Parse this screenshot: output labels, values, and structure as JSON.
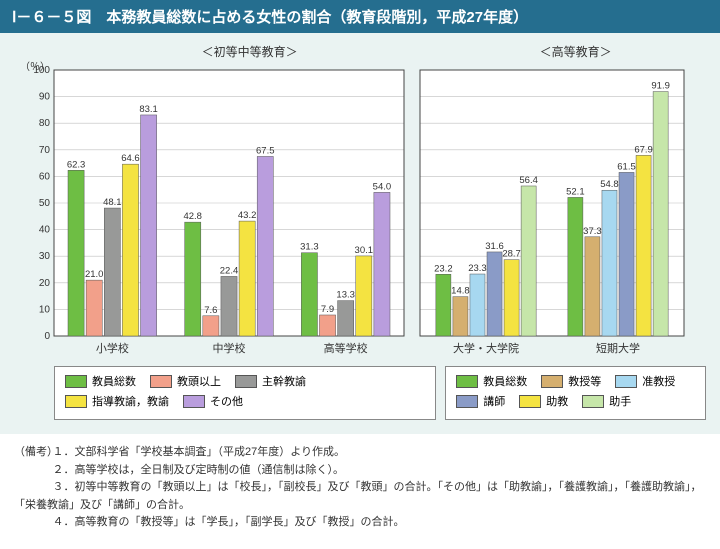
{
  "title": "Ⅰ－６－５図　本務教員総数に占める女性の割合（教育段階別，平成27年度）",
  "panel_left_title": "＜初等中等教育＞",
  "panel_right_title": "＜高等教育＞",
  "y_axis_label": "（％）",
  "y_axis": {
    "min": 0,
    "max": 100,
    "step": 10
  },
  "colors": {
    "green": "#6EBE44",
    "salmon": "#F2A08A",
    "gray": "#989998",
    "yellow": "#F4E341",
    "violet": "#B99DDD",
    "tan": "#D5AF6F",
    "lightblue": "#A7D8F0",
    "slate": "#8A9BC7",
    "palegreen": "#C6E6A9",
    "background": "#EAF3F2",
    "plot_bg": "#FFFFFF",
    "plot_border": "#444444",
    "grid": "#BFBFBF",
    "text": "#333333"
  },
  "left": {
    "series": [
      {
        "key": "s1",
        "label": "教員総数",
        "color": "green"
      },
      {
        "key": "s2",
        "label": "教頭以上",
        "color": "salmon"
      },
      {
        "key": "s3",
        "label": "主幹教諭",
        "color": "gray"
      },
      {
        "key": "s4",
        "label": "指導教諭，教諭",
        "color": "yellow"
      },
      {
        "key": "s5",
        "label": "その他",
        "color": "violet"
      }
    ],
    "categories": [
      {
        "label": "小学校",
        "values": [
          62.3,
          21.0,
          48.1,
          64.6,
          83.1
        ]
      },
      {
        "label": "中学校",
        "values": [
          42.8,
          7.6,
          22.4,
          43.2,
          67.5
        ]
      },
      {
        "label": "高等学校",
        "values": [
          31.3,
          7.9,
          13.3,
          30.1,
          54.0
        ]
      }
    ]
  },
  "right": {
    "series": [
      {
        "key": "r1",
        "label": "教員総数",
        "color": "green"
      },
      {
        "key": "r2",
        "label": "教授等",
        "color": "tan"
      },
      {
        "key": "r3",
        "label": "准教授",
        "color": "lightblue"
      },
      {
        "key": "r4",
        "label": "講師",
        "color": "slate"
      },
      {
        "key": "r5",
        "label": "助教",
        "color": "yellow"
      },
      {
        "key": "r6",
        "label": "助手",
        "color": "palegreen"
      }
    ],
    "categories": [
      {
        "label": "大学・大学院",
        "values": [
          23.2,
          14.8,
          23.3,
          31.6,
          28.7,
          56.4
        ]
      },
      {
        "label": "短期大学",
        "values": [
          52.1,
          37.3,
          54.8,
          61.5,
          67.9,
          91.9
        ]
      }
    ]
  },
  "notes_label": "（備考）",
  "notes": [
    "１．文部科学省「学校基本調査」（平成27年度）より作成。",
    "２．高等学校は，全日制及び定時制の値（通信制は除く）。",
    "３．初等中等教育の「教頭以上」は「校長」，「副校長」及び「教頭」の合計。「その他」は「助教諭」，「養護教諭」，「養護助教諭」，「栄養教諭」及び「講師」の合計。",
    "４．高等教育の「教授等」は「学長」，「副学長」及び「教授」の合計。"
  ]
}
